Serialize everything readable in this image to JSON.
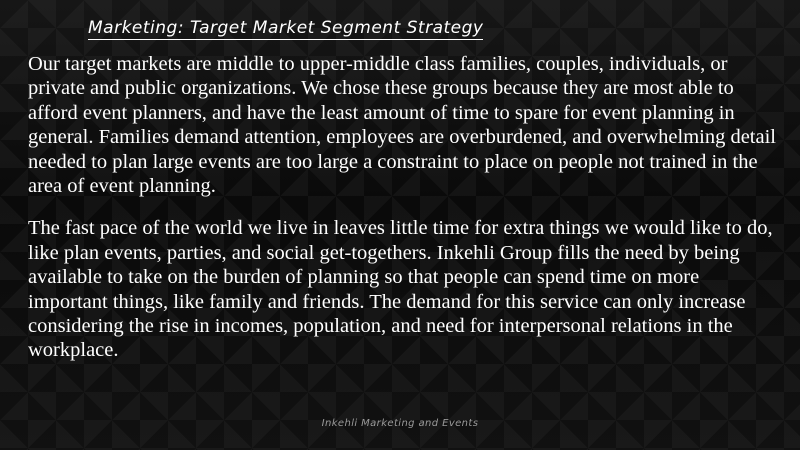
{
  "slide": {
    "title": "Marketing: Target Market Segment Strategy",
    "paragraphs": [
      "Our target markets are middle to upper-middle class families, couples, individuals, or private and public organizations. We chose these groups because they are most able to afford event planners, and have the least amount of time to spare for event planning in general. Families demand attention, employees are overburdened, and overwhelming detail needed to plan large events are too large a constraint to place on people not trained in the area of event planning.",
      "The fast pace of the world we live in leaves little time for extra things we would like to do, like plan events, parties, and social get-togethers. Inkehli Group fills the need by being available to take on the burden of planning so that people can spend time on more important things, like family and friends. The demand for this service can only increase considering the rise in incomes, population, and need for interpersonal relations in the workplace."
    ],
    "footer": "Inkehli Marketing and Events"
  },
  "colors": {
    "background": "#0b0b0b",
    "text": "#ffffff",
    "footer_text": "#9a9a9a"
  }
}
